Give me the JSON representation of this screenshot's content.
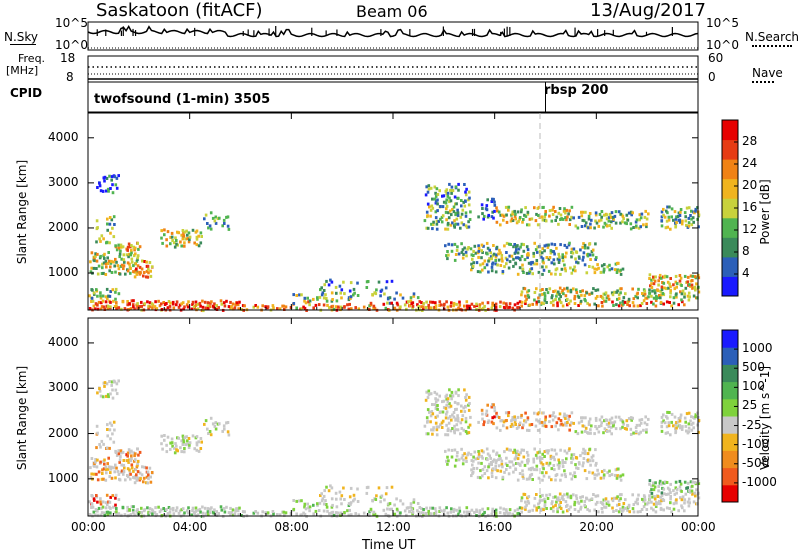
{
  "header": {
    "station": "Saskatoon (fitACF)",
    "beam": "Beam 06",
    "date": "13/Aug/2017"
  },
  "nsky_panel": {
    "left_label": "N.Sky",
    "right_label": "N.Search",
    "ticks": [
      "10^5",
      "10^0"
    ]
  },
  "freq_panel": {
    "left_label_line1": "Freq.",
    "left_label_line2": "[MHz]",
    "right_label": "Nave",
    "left_ticks": [
      "18",
      "8"
    ],
    "right_ticks": [
      "60",
      "0"
    ]
  },
  "cpid_panel": {
    "label": "CPID",
    "program_1": "twofsound (1-min) 3505",
    "program_2": "rbsp 200",
    "switch_hour": 18.0
  },
  "colors": {
    "power": [
      "#1a1aff",
      "#2b5fb8",
      "#3a8a5a",
      "#50b450",
      "#c8d23c",
      "#f0b41e",
      "#f08214",
      "#e63c14",
      "#e60000"
    ],
    "velocity": [
      "#e60000",
      "#f05a1e",
      "#f08c1e",
      "#f0b41e",
      "#c8c8c8",
      "#7fd23c",
      "#50b450",
      "#3a8a5a",
      "#2b5fb8",
      "#1a1aff"
    ]
  },
  "chart_data": [
    {
      "type": "heatmap",
      "panel": "power",
      "ylabel": "Slant Range [km]",
      "colorbar_label": "Power [dB]",
      "colorbar_ticks": [
        "4",
        "8",
        "12",
        "16",
        "20",
        "24",
        "28"
      ],
      "colorbar_range": [
        0,
        32
      ],
      "xlim_hours": [
        0,
        24
      ],
      "ylim_km": [
        180,
        4550
      ],
      "yticks": [
        "1000",
        "2000",
        "3000",
        "4000"
      ],
      "grid": false
    },
    {
      "type": "heatmap",
      "panel": "velocity",
      "ylabel": "Slant Range [km]",
      "colorbar_label": "Velocity [m s^-1]",
      "colorbar_ticks": [
        "1000",
        "500",
        "100",
        "25",
        "-25",
        "-100",
        "-500",
        "-1000"
      ],
      "xlim_hours": [
        0,
        24
      ],
      "ylim_km": [
        180,
        4550
      ],
      "yticks": [
        "1000",
        "2000",
        "3000",
        "4000"
      ],
      "grid": false
    }
  ],
  "xaxis": {
    "label": "Time UT",
    "ticks": [
      "00:00",
      "04:00",
      "08:00",
      "12:00",
      "16:00",
      "20:00",
      "00:00"
    ]
  }
}
